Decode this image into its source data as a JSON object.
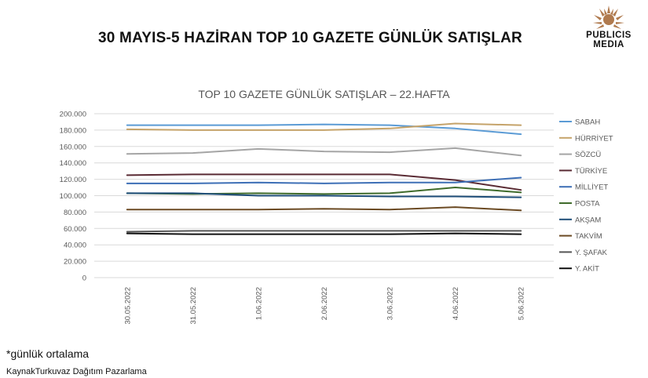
{
  "page_title": "30 MAYIS-5 HAZİRAN TOP 10 GAZETE GÜNLÜK SATIŞLAR",
  "logo": {
    "line1": "PUBLICIS",
    "line2": "MEDIA"
  },
  "footnote": "*günlük ortalama",
  "source": "KaynakTurkuvaz Dağıtım Pazarlama",
  "chart_data": {
    "type": "line",
    "title": "TOP 10 GAZETE GÜNLÜK SATIŞLAR – 22.HAFTA",
    "categories": [
      "30.05.2022",
      "31.05.2022",
      "1.06.2022",
      "2.06.2022",
      "3.06.2022",
      "4.06.2022",
      "5.06.2022"
    ],
    "ylim": [
      0,
      200000
    ],
    "yticks": [
      0,
      20000,
      40000,
      60000,
      80000,
      100000,
      120000,
      140000,
      160000,
      180000,
      200000
    ],
    "ytick_labels": [
      "0",
      "20.000",
      "40.000",
      "60.000",
      "80.000",
      "100.000",
      "120.000",
      "140.000",
      "160.000",
      "180.000",
      "200.000"
    ],
    "grid": true,
    "legend_position": "right",
    "series": [
      {
        "name": "SABAH",
        "color": "#5b9bd5",
        "values": [
          186000,
          186000,
          186000,
          187000,
          186000,
          182000,
          175000
        ]
      },
      {
        "name": "HÜRRİYET",
        "color": "#c5a36a",
        "values": [
          181000,
          180000,
          180000,
          180000,
          182000,
          188000,
          186000
        ]
      },
      {
        "name": "SÖZCÜ",
        "color": "#a5a5a5",
        "values": [
          151000,
          152000,
          157000,
          154000,
          153000,
          158000,
          149000
        ]
      },
      {
        "name": "TÜRKİYE",
        "color": "#5a2b34",
        "values": [
          125000,
          126000,
          126000,
          126000,
          126000,
          119000,
          107000
        ]
      },
      {
        "name": "MİLLİYET",
        "color": "#3d6fb6",
        "values": [
          115000,
          115000,
          116000,
          115000,
          116000,
          116000,
          122000
        ]
      },
      {
        "name": "POSTA",
        "color": "#3f6b2b",
        "values": [
          103000,
          102000,
          103000,
          102000,
          103000,
          110000,
          104000
        ]
      },
      {
        "name": "AKŞAM",
        "color": "#1f4e79",
        "values": [
          103000,
          103000,
          100000,
          100000,
          99000,
          99000,
          98000
        ]
      },
      {
        "name": "TAKVİM",
        "color": "#6b4a23",
        "values": [
          83000,
          83000,
          83000,
          84000,
          83000,
          86000,
          82000
        ]
      },
      {
        "name": "Y. ŞAFAK",
        "color": "#555555",
        "values": [
          56000,
          57000,
          57000,
          57000,
          57000,
          57000,
          57000
        ]
      },
      {
        "name": "Y. AKİT",
        "color": "#111111",
        "values": [
          54000,
          53000,
          53000,
          53000,
          53000,
          54000,
          53000
        ]
      }
    ]
  }
}
